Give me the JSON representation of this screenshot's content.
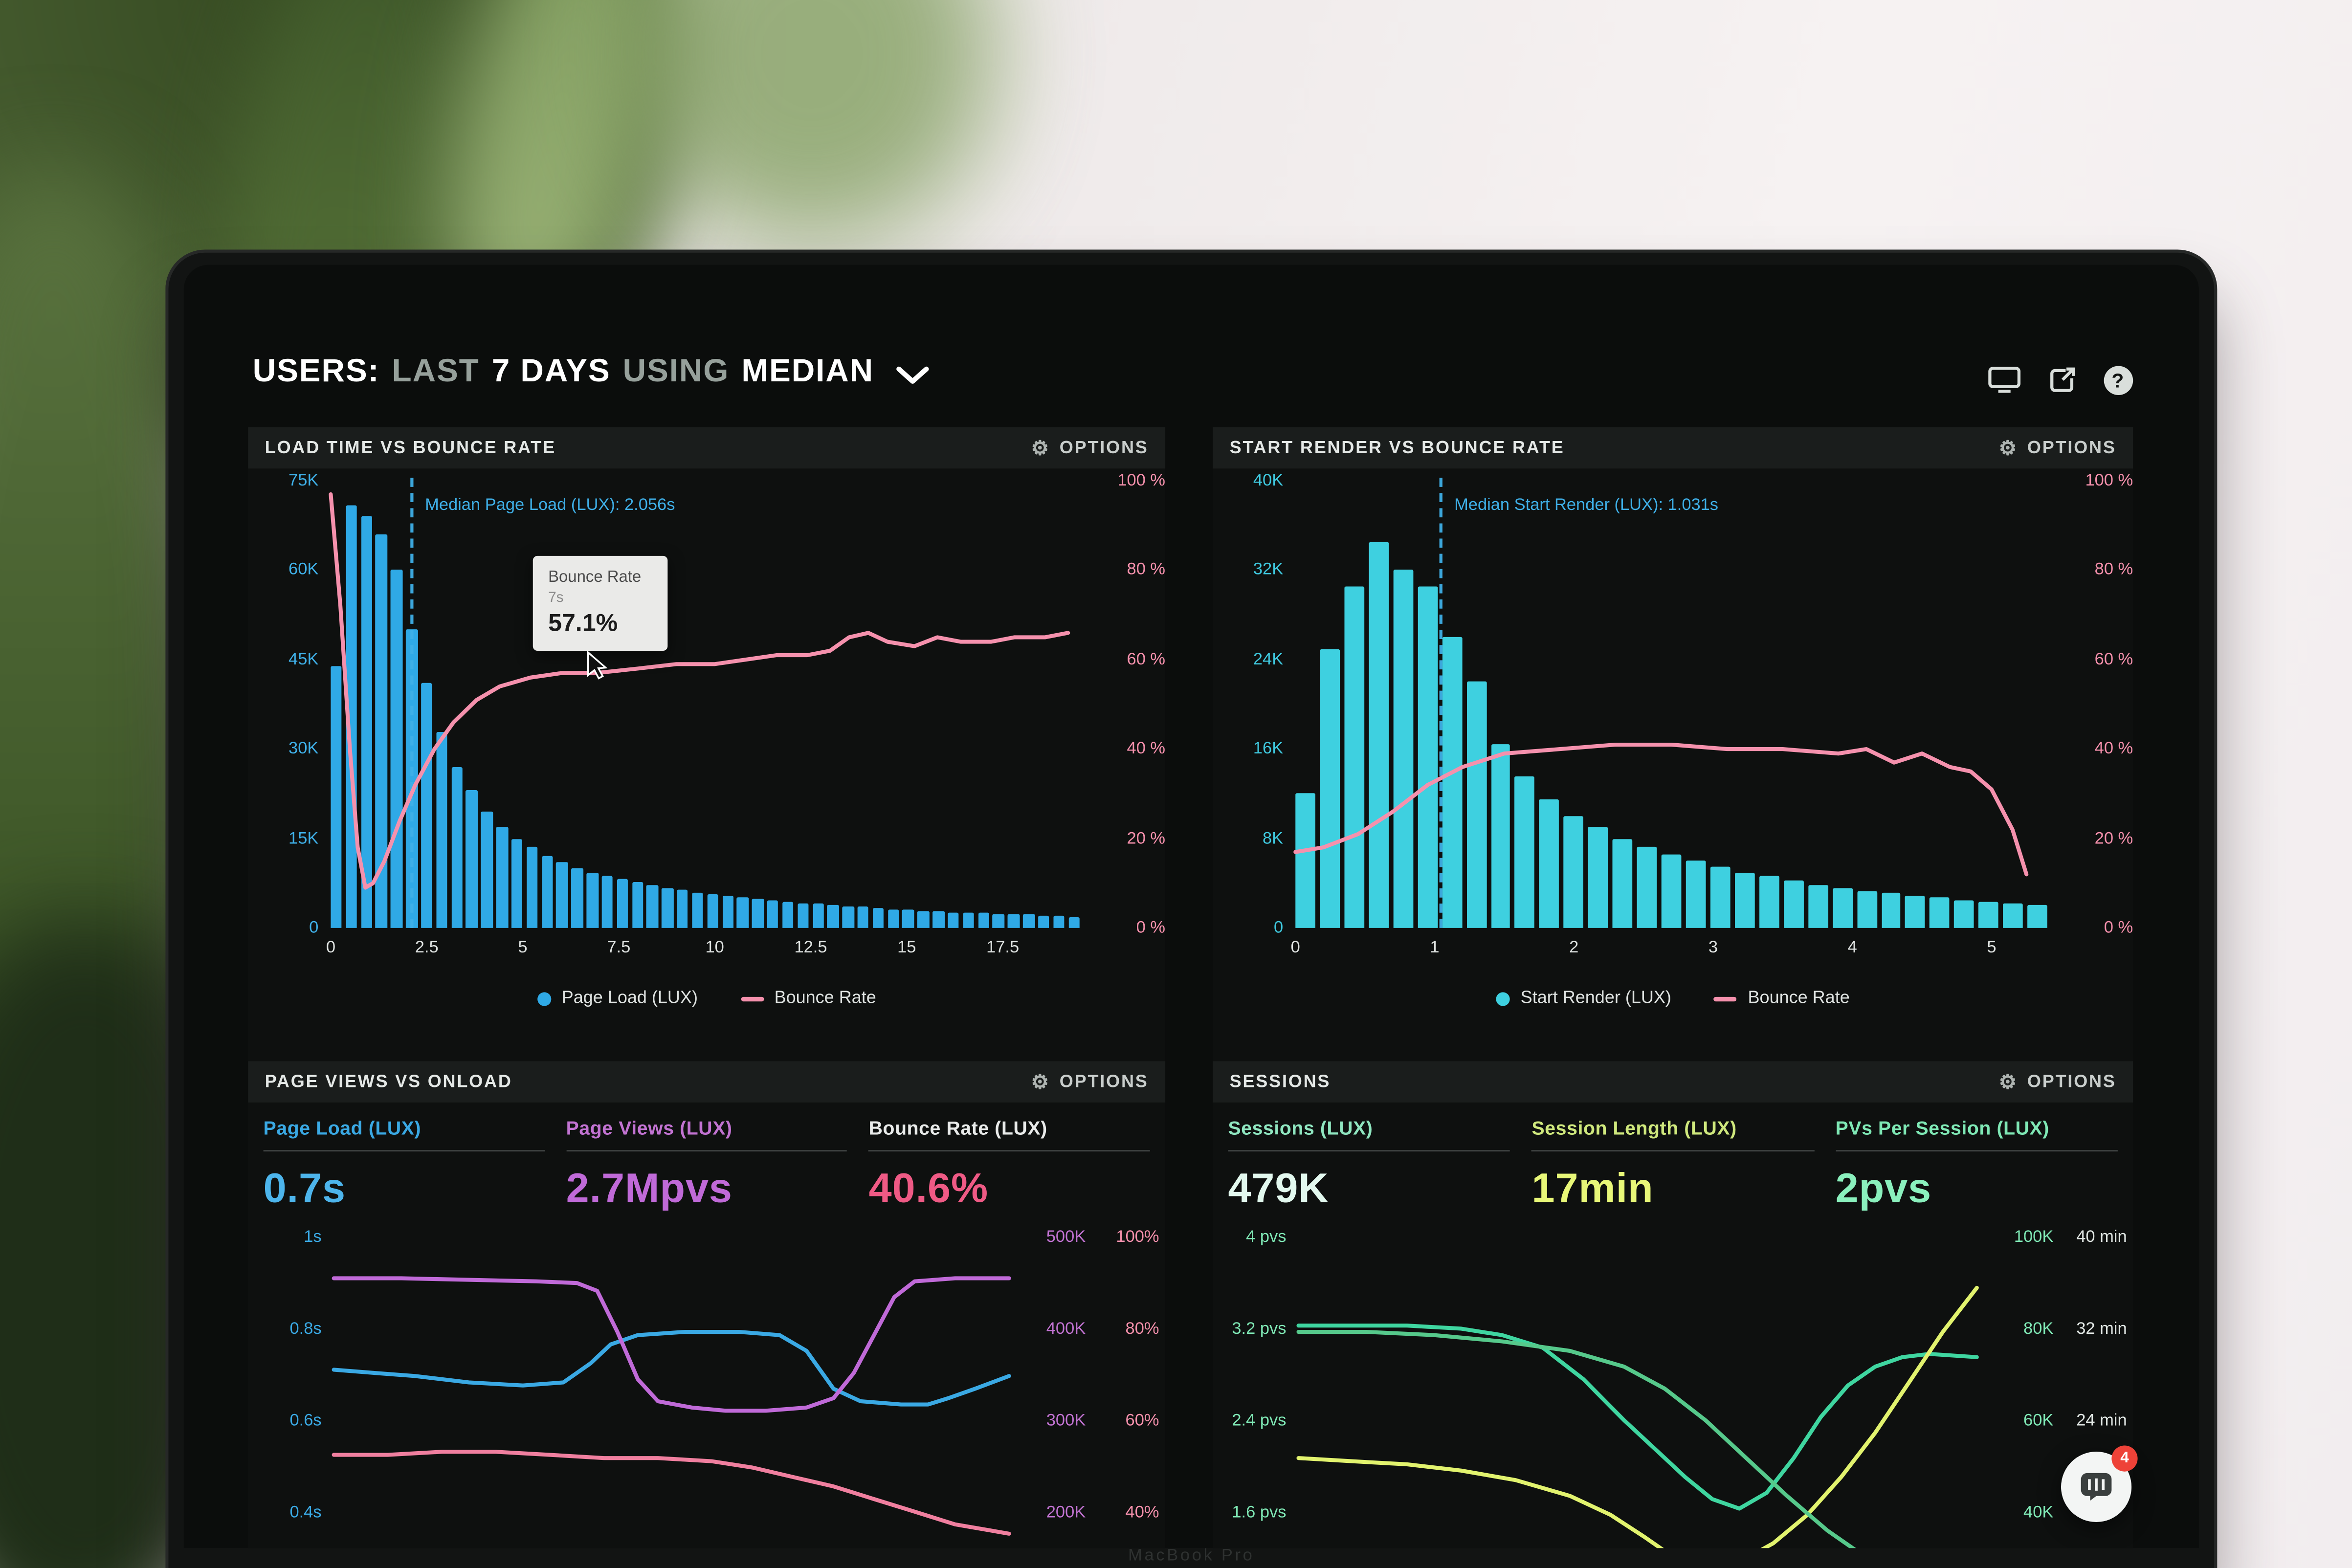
{
  "header": {
    "users": "USERS:",
    "last": "LAST",
    "days": "7 DAYS",
    "using": "USING",
    "median": "MEDIAN"
  },
  "chat_widget": {
    "badge": "4"
  },
  "laptop": {
    "brand_text": "MacBook Pro"
  },
  "chart_data": [
    {
      "id": "load-time-vs-bounce-rate",
      "type": "bar+line",
      "title": "LOAD TIME VS BOUNCE RATE",
      "options_label": "OPTIONS",
      "x_axis": {
        "min": 0,
        "max": 19.5,
        "ticks": [
          0,
          2.5,
          5,
          7.5,
          10,
          12.5,
          15,
          17.5
        ],
        "unit": "s"
      },
      "y_left": {
        "max": 75,
        "unit": "K",
        "ticks": [
          "75K",
          "60K",
          "45K",
          "30K",
          "15K",
          "0"
        ],
        "color": "#3fb0e8"
      },
      "y_right": {
        "ticks": [
          "100 %",
          "80 %",
          "60 %",
          "40 %",
          "20 %",
          "0 %"
        ],
        "color": "#f590ac"
      },
      "bars": {
        "name": "Page Load (LUX)",
        "color": "#2fa9e6",
        "values_k": [
          44,
          71,
          69,
          66,
          60,
          50,
          41,
          33,
          27,
          23,
          19.5,
          17,
          15,
          13.5,
          12,
          11,
          10,
          9.3,
          8.7,
          8.2,
          7.7,
          7.2,
          6.8,
          6.4,
          6.0,
          5.7,
          5.4,
          5.1,
          4.8,
          4.6,
          4.4,
          4.2,
          4.0,
          3.8,
          3.6,
          3.5,
          3.3,
          3.2,
          3.0,
          2.9,
          2.8,
          2.7,
          2.6,
          2.5,
          2.4,
          2.3,
          2.2,
          2.1,
          2.0,
          1.9
        ]
      },
      "median": {
        "x": 2.056,
        "label": "Median Page Load (LUX): 2.056s",
        "color": "#3fb0e8"
      },
      "line": {
        "name": "Bounce Rate",
        "color": "#f591ad",
        "points_pct": [
          [
            0,
            97
          ],
          [
            0.25,
            72
          ],
          [
            0.5,
            40
          ],
          [
            0.7,
            18
          ],
          [
            0.9,
            9
          ],
          [
            1.1,
            10
          ],
          [
            1.4,
            15
          ],
          [
            1.8,
            24
          ],
          [
            2.2,
            32
          ],
          [
            2.7,
            40
          ],
          [
            3.2,
            46
          ],
          [
            3.8,
            51
          ],
          [
            4.4,
            54
          ],
          [
            5.2,
            56
          ],
          [
            6,
            57
          ],
          [
            7,
            57.1
          ],
          [
            8,
            58
          ],
          [
            9,
            59
          ],
          [
            10,
            59
          ],
          [
            10.8,
            60
          ],
          [
            11.6,
            61
          ],
          [
            12.4,
            61
          ],
          [
            13,
            62
          ],
          [
            13.5,
            65
          ],
          [
            14,
            66
          ],
          [
            14.5,
            64
          ],
          [
            15.2,
            63
          ],
          [
            15.8,
            65
          ],
          [
            16.4,
            64
          ],
          [
            17.2,
            64
          ],
          [
            17.8,
            65
          ],
          [
            18.6,
            65
          ],
          [
            19.2,
            66
          ]
        ]
      },
      "legend": [
        {
          "label": "Page Load (LUX)",
          "marker": "dot",
          "color": "#2fa9e6"
        },
        {
          "label": "Bounce Rate",
          "marker": "line",
          "color": "#f591ad"
        }
      ],
      "tooltip": {
        "title": "Bounce Rate",
        "sub": "7s",
        "value": "57.1%"
      }
    },
    {
      "id": "start-render-vs-bounce-rate",
      "type": "bar+line",
      "title": "START RENDER VS BOUNCE RATE",
      "options_label": "OPTIONS",
      "x_axis": {
        "min": 0,
        "max": 5.4,
        "ticks": [
          0,
          1,
          2,
          3,
          4,
          5
        ],
        "unit": "s"
      },
      "y_left": {
        "max": 40,
        "unit": "K",
        "ticks": [
          "40K",
          "32K",
          "24K",
          "16K",
          "8K",
          "0"
        ],
        "color": "#3fc9df"
      },
      "y_right": {
        "ticks": [
          "100 %",
          "80 %",
          "60 %",
          "40 %",
          "20 %",
          "0 %"
        ],
        "color": "#f590ac"
      },
      "bars": {
        "name": "Start Render (LUX)",
        "color": "#3ed0e0",
        "values_k": [
          12,
          25,
          30.5,
          34.5,
          32,
          30.5,
          26,
          22,
          16.5,
          13.5,
          11.5,
          10,
          9,
          8,
          7.2,
          6.6,
          6,
          5.5,
          5,
          4.6,
          4.2,
          3.9,
          3.6,
          3.3,
          3.1,
          2.9,
          2.7,
          2.5,
          2.3,
          2.2,
          2.0
        ]
      },
      "median": {
        "x": 1.031,
        "label": "Median Start Render (LUX): 1.031s",
        "color": "#3fb0e8"
      },
      "line": {
        "name": "Bounce Rate",
        "color": "#f591ad",
        "points_pct": [
          [
            0,
            17
          ],
          [
            0.2,
            18
          ],
          [
            0.45,
            21
          ],
          [
            0.7,
            26
          ],
          [
            0.95,
            32
          ],
          [
            1.2,
            36
          ],
          [
            1.5,
            39
          ],
          [
            1.9,
            40
          ],
          [
            2.3,
            41
          ],
          [
            2.7,
            41
          ],
          [
            3.1,
            40
          ],
          [
            3.5,
            40
          ],
          [
            3.9,
            39
          ],
          [
            4.1,
            40
          ],
          [
            4.3,
            37
          ],
          [
            4.5,
            39
          ],
          [
            4.7,
            36
          ],
          [
            4.85,
            35
          ],
          [
            5.0,
            31
          ],
          [
            5.15,
            22
          ],
          [
            5.25,
            12
          ]
        ]
      },
      "legend": [
        {
          "label": "Start Render (LUX)",
          "marker": "dot",
          "color": "#3ed0e0"
        },
        {
          "label": "Bounce Rate",
          "marker": "line",
          "color": "#f591ad"
        }
      ]
    },
    {
      "id": "page-views-vs-onload",
      "type": "line",
      "title": "PAGE VIEWS VS ONLOAD",
      "options_label": "OPTIONS",
      "metrics": [
        {
          "label": "Page Load (LUX)",
          "value": "0.7s",
          "label_color": "#3aa9e4",
          "value_color": "#4db5ec"
        },
        {
          "label": "Page Views (LUX)",
          "value": "2.7Mpvs",
          "label_color": "#c273d2",
          "value_color": "#c06ad8"
        },
        {
          "label": "Bounce Rate (LUX)",
          "value": "40.6%",
          "label_color": "#e9ebea",
          "value_color": "#ef5a85"
        }
      ],
      "y_left": {
        "ticks": [
          "1s",
          "0.8s",
          "0.6s",
          "0.4s"
        ],
        "color": "#3aa9e4"
      },
      "y_right": {
        "ticks": [
          [
            "500K",
            "100%"
          ],
          [
            "400K",
            "80%"
          ],
          [
            "300K",
            "60%"
          ],
          [
            "200K",
            "40%"
          ]
        ],
        "color_a": "#c273d2",
        "color_b": "#f590ac"
      },
      "series": [
        {
          "name": "Page Load",
          "color": "#3aa9e4",
          "points": [
            [
              0,
              42
            ],
            [
              6,
              43
            ],
            [
              12,
              44
            ],
            [
              20,
              46
            ],
            [
              28,
              47
            ],
            [
              34,
              46
            ],
            [
              38,
              40
            ],
            [
              41,
              34
            ],
            [
              45,
              31
            ],
            [
              52,
              30
            ],
            [
              60,
              30
            ],
            [
              66,
              31
            ],
            [
              70,
              36
            ],
            [
              74,
              48
            ],
            [
              78,
              52
            ],
            [
              84,
              53
            ],
            [
              88,
              53
            ],
            [
              91,
              51
            ],
            [
              95,
              48
            ],
            [
              100,
              44
            ]
          ]
        },
        {
          "name": "Page Views",
          "color": "#c06ad8",
          "points": [
            [
              0,
              13
            ],
            [
              10,
              13
            ],
            [
              20,
              13.5
            ],
            [
              30,
              14
            ],
            [
              36,
              14.5
            ],
            [
              39,
              17
            ],
            [
              42,
              30
            ],
            [
              45,
              45
            ],
            [
              48,
              52
            ],
            [
              53,
              54
            ],
            [
              58,
              55
            ],
            [
              64,
              55
            ],
            [
              70,
              54
            ],
            [
              74,
              51
            ],
            [
              77,
              43
            ],
            [
              80,
              31
            ],
            [
              83,
              19
            ],
            [
              86,
              14
            ],
            [
              92,
              13
            ],
            [
              100,
              13
            ]
          ]
        },
        {
          "name": "Bounce Rate",
          "color": "#f07f9f",
          "points": [
            [
              0,
              69
            ],
            [
              8,
              69
            ],
            [
              16,
              68
            ],
            [
              24,
              68
            ],
            [
              32,
              69
            ],
            [
              40,
              70
            ],
            [
              48,
              70
            ],
            [
              56,
              71
            ],
            [
              62,
              73
            ],
            [
              68,
              76
            ],
            [
              74,
              79
            ],
            [
              80,
              83
            ],
            [
              86,
              87
            ],
            [
              92,
              91
            ],
            [
              100,
              94
            ]
          ]
        }
      ]
    },
    {
      "id": "sessions",
      "type": "line",
      "title": "SESSIONS",
      "options_label": "OPTIONS",
      "metrics": [
        {
          "label": "Sessions (LUX)",
          "value": "479K",
          "label_color": "#8fe6c0",
          "value_color": "#e2f8ee"
        },
        {
          "label": "Session Length (LUX)",
          "value": "17min",
          "label_color": "#cfe87d",
          "value_color": "#e8f778"
        },
        {
          "label": "PVs Per Session (LUX)",
          "value": "2pvs",
          "label_color": "#7fe8b5",
          "value_color": "#8af0bd"
        }
      ],
      "y_left": {
        "ticks": [
          "4 pvs",
          "3.2 pvs",
          "2.4 pvs",
          "1.6 pvs"
        ],
        "color": "#7fe8b5"
      },
      "y_right": {
        "ticks": [
          [
            "100K",
            "40 min"
          ],
          [
            "80K",
            "32 min"
          ],
          [
            "60K",
            "24 min"
          ],
          [
            "40K",
            ""
          ]
        ],
        "color_a": "#7fe8b5",
        "color_b": "#e0e6e3"
      },
      "series": [
        {
          "name": "Sessions",
          "color": "#3fd6a0",
          "points": [
            [
              0,
              28
            ],
            [
              8,
              28
            ],
            [
              16,
              28
            ],
            [
              24,
              29
            ],
            [
              30,
              31
            ],
            [
              36,
              35
            ],
            [
              42,
              45
            ],
            [
              48,
              58
            ],
            [
              53,
              68
            ],
            [
              57,
              76
            ],
            [
              61,
              83
            ],
            [
              65,
              86
            ],
            [
              69,
              81
            ],
            [
              73,
              70
            ],
            [
              77,
              57
            ],
            [
              81,
              47
            ],
            [
              85,
              41
            ],
            [
              89,
              38
            ],
            [
              93,
              37
            ],
            [
              100,
              38
            ]
          ]
        },
        {
          "name": "Session Length",
          "color": "#e2f36e",
          "points": [
            [
              0,
              70
            ],
            [
              8,
              71
            ],
            [
              16,
              72
            ],
            [
              24,
              74
            ],
            [
              32,
              77
            ],
            [
              40,
              82
            ],
            [
              46,
              88
            ],
            [
              51,
              95
            ],
            [
              55,
              101
            ],
            [
              60,
              104
            ],
            [
              65,
              103
            ],
            [
              70,
              97
            ],
            [
              75,
              88
            ],
            [
              80,
              76
            ],
            [
              85,
              62
            ],
            [
              90,
              46
            ],
            [
              95,
              30
            ],
            [
              100,
              16
            ]
          ]
        },
        {
          "name": "PVs Per Session",
          "color": "#56c98b",
          "points": [
            [
              0,
              30
            ],
            [
              10,
              30
            ],
            [
              20,
              31
            ],
            [
              30,
              33
            ],
            [
              40,
              36
            ],
            [
              48,
              41
            ],
            [
              54,
              48
            ],
            [
              60,
              58
            ],
            [
              66,
              70
            ],
            [
              72,
              82
            ],
            [
              78,
              93
            ],
            [
              84,
              102
            ],
            [
              90,
              108
            ],
            [
              100,
              112
            ]
          ]
        }
      ]
    }
  ]
}
